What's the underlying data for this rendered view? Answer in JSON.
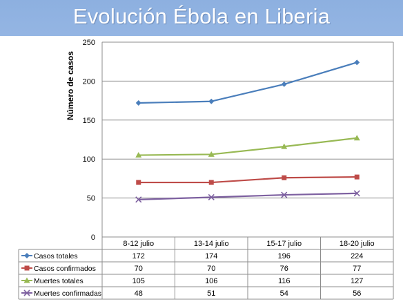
{
  "title": "Evolución Ébola en Liberia",
  "chart_data": {
    "type": "line",
    "ylabel": "Número de casos",
    "xlabel": "",
    "ylim": [
      0,
      250
    ],
    "yticks": [
      "0",
      "50",
      "100",
      "150",
      "200",
      "250"
    ],
    "grid": "horizontal",
    "legend": "data-table",
    "categories": [
      "8-12 julio",
      "13-14 julio",
      "15-17 julio",
      "18-20 julio"
    ],
    "series": [
      {
        "name": "Casos totales",
        "values": [
          172,
          174,
          196,
          224
        ],
        "color": "#4a7ebb",
        "marker": "diamond"
      },
      {
        "name": "Casos confirmados",
        "values": [
          70,
          70,
          76,
          77
        ],
        "color": "#be4b48",
        "marker": "square"
      },
      {
        "name": "Muertes totales",
        "values": [
          105,
          106,
          116,
          127
        ],
        "color": "#98b954",
        "marker": "triangle"
      },
      {
        "name": "Muertes confirmadas",
        "values": [
          48,
          51,
          54,
          56
        ],
        "color": "#7d60a0",
        "marker": "x"
      }
    ]
  }
}
